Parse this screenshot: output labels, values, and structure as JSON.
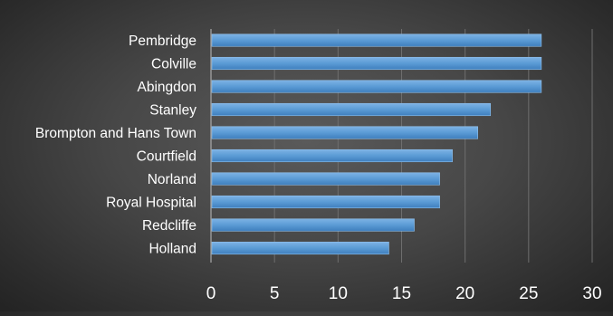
{
  "chart_data": {
    "type": "bar",
    "orientation": "horizontal",
    "title": "",
    "xlabel": "",
    "ylabel": "",
    "categories": [
      "Pembridge",
      "Colville",
      "Abingdon",
      "Stanley",
      "Brompton and Hans Town",
      "Courtfield",
      "Norland",
      "Royal Hospital",
      "Redcliffe",
      "Holland"
    ],
    "values": [
      26,
      26,
      26,
      22,
      21,
      19,
      18,
      18,
      16,
      14
    ],
    "xlim": [
      0,
      30
    ],
    "xticks": [
      "0",
      "5",
      "10",
      "15",
      "20",
      "25",
      "30"
    ],
    "grid": "vertical",
    "legend": "none",
    "colors": {
      "bar_fill": "#5b9bd5",
      "bar_edge": "#8fc0ec",
      "gridline": "#6e6e6e",
      "axis_line": "#bdbdbd",
      "label_text": "#ffffff"
    }
  }
}
